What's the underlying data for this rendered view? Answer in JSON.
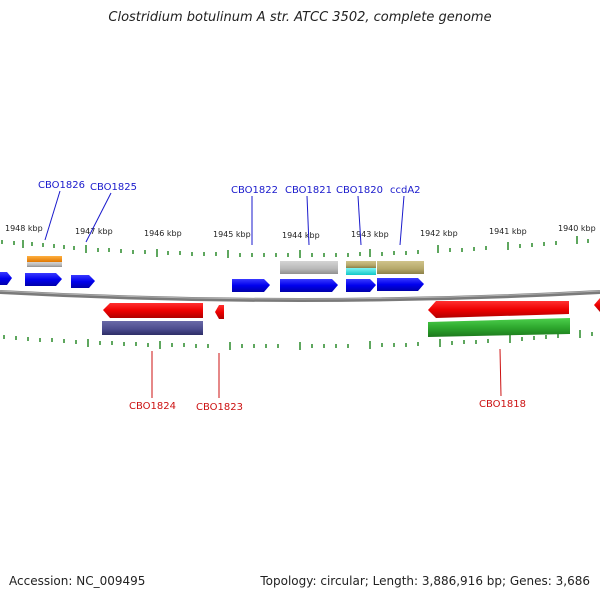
{
  "title": "Clostridium botulinum A str. ATCC 3502, complete genome",
  "footer": {
    "accession": "Accession: NC_009495",
    "topology": "Topology: circular; Length: 3,886,916 bp; Genes: 3,686"
  },
  "scale_labels": [
    "1948 kbp",
    "1947 kbp",
    "1946 kbp",
    "1945 kbp",
    "1944 kbp",
    "1943 kbp",
    "1942 kbp",
    "1941 kbp",
    "1940 kbp"
  ],
  "forward_labels": [
    "CBO1826",
    "CBO1825",
    "CBO1822",
    "CBO1821",
    "CBO1820",
    "ccdA2"
  ],
  "reverse_labels": [
    "CBO1824",
    "CBO1823",
    "CBO1818"
  ],
  "colors": {
    "forward_gene": "#0000ee",
    "reverse_gene": "#ee0000",
    "forward_label": "#1a1acc",
    "reverse_label": "#cc1111",
    "tick": "#2a8a2a",
    "backbone": "#777777",
    "orange_feature": "#f08c10",
    "cyan_feature": "#22dddd",
    "khaki_feature": "#b5a86a",
    "gray_feature": "#b8b8b8",
    "slate_feature": "#4a4a8c",
    "green_feature": "#2ea82e"
  }
}
